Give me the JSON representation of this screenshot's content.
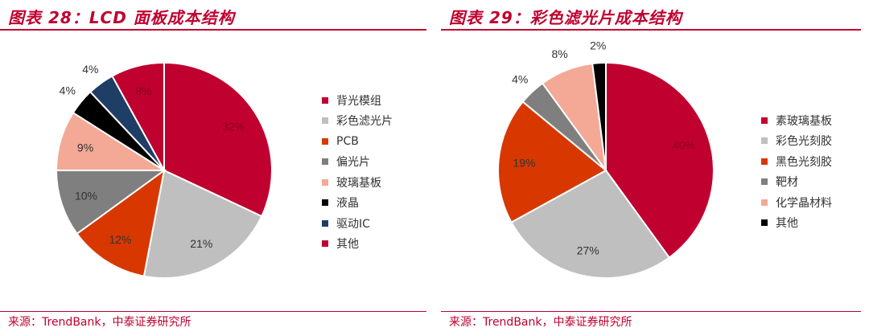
{
  "panels": [
    {
      "title": "图表 28：LCD 面板成本结构",
      "source": "来源：TrendBank，中泰证券研究所"
    },
    {
      "title": "图表 29：彩色滤光片成本结构",
      "source": "来源：TrendBank，中泰证券研究所"
    }
  ],
  "chart_data": [
    {
      "type": "pie",
      "title": "图表 28：LCD 面板成本结构",
      "labels": [
        "背光模组",
        "彩色滤光片",
        "PCB",
        "偏光片",
        "玻璃基板",
        "液晶",
        "驱动IC",
        "其他"
      ],
      "values": [
        32,
        21,
        12,
        10,
        9,
        4,
        4,
        8
      ],
      "value_labels": [
        "32%",
        "21%",
        "12%",
        "10%",
        "9%",
        "4%",
        "4%",
        "8%"
      ],
      "colors": [
        "#c0002f",
        "#bfbfbf",
        "#d83800",
        "#7f7f7f",
        "#f4a896",
        "#000000",
        "#1f3e66",
        "#c0002f"
      ],
      "start": "12 o'clock",
      "direction": "clockwise",
      "legend_position": "right"
    },
    {
      "type": "pie",
      "title": "图表 29：彩色滤光片成本结构",
      "labels": [
        "素玻璃基板",
        "彩色光刻胶",
        "黑色光刻胶",
        "靶材",
        "化学晶材料",
        "其他"
      ],
      "values": [
        40,
        27,
        19,
        4,
        8,
        2
      ],
      "value_labels": [
        "40%",
        "27%",
        "19%",
        "4%",
        "8%",
        "2%"
      ],
      "colors": [
        "#c0002f",
        "#bfbfbf",
        "#d83800",
        "#7f7f7f",
        "#f4a896",
        "#000000"
      ],
      "start": "12 o'clock",
      "direction": "clockwise",
      "legend_position": "right"
    }
  ]
}
